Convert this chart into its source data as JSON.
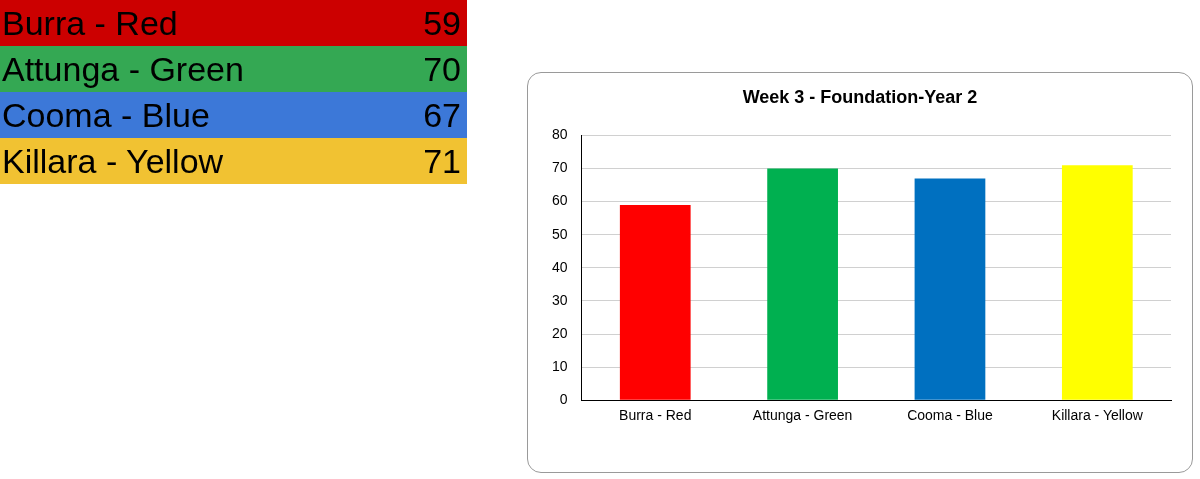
{
  "chart_data": [
    {
      "type": "other",
      "annotations": [
        "Burra - Red",
        "59",
        "Attunga - Green",
        "70",
        "Cooma - Blue",
        "67",
        "Killara - Yellow",
        "71"
      ]
    },
    {
      "type": "bar",
      "title": "Week 3 - Foundation-Year 2",
      "categories": [
        "Burra - Red",
        "Attunga - Green",
        "Cooma - Blue",
        "Killara - Yellow"
      ],
      "values": [
        59,
        70,
        67,
        71
      ],
      "colors": [
        "#ff0000",
        "#00b050",
        "#0070c0",
        "#ffff00"
      ],
      "ylim": [
        0,
        80
      ],
      "yticks": [
        0,
        10,
        20,
        30,
        40,
        50,
        60,
        70,
        80
      ],
      "grid": "y",
      "legend": false
    }
  ]
}
